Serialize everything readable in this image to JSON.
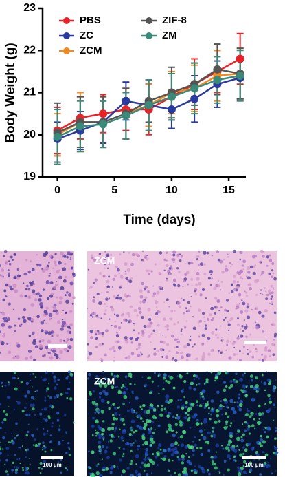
{
  "chart_data": {
    "type": "line",
    "x_label": "Time (days)",
    "y_label": "Body Weight (g)",
    "x": [
      0,
      2,
      4,
      6,
      8,
      10,
      12,
      14,
      16
    ],
    "xlim": [
      -1.3,
      16.5
    ],
    "xticks": [
      0,
      5,
      10,
      15
    ],
    "ylim": [
      19,
      23
    ],
    "yticks": [
      19,
      20,
      21,
      22,
      23
    ],
    "series": [
      {
        "name": "PBS",
        "color": "#e8232a",
        "values": [
          20.1,
          20.4,
          20.5,
          20.6,
          20.6,
          20.9,
          21.2,
          21.5,
          21.8
        ],
        "errors": [
          0.55,
          0.5,
          0.45,
          0.5,
          0.6,
          0.55,
          0.6,
          0.5,
          0.6
        ]
      },
      {
        "name": "ZC",
        "color": "#2b3a9e",
        "values": [
          19.9,
          20.1,
          20.3,
          20.8,
          20.7,
          20.6,
          20.85,
          21.2,
          21.35
        ],
        "errors": [
          0.4,
          0.45,
          0.5,
          0.45,
          0.5,
          0.45,
          0.55,
          0.55,
          0.5
        ]
      },
      {
        "name": "ZCM",
        "color": "#f08a24",
        "values": [
          20.0,
          20.3,
          20.3,
          20.5,
          20.7,
          21.0,
          21.1,
          21.4,
          21.45
        ],
        "errors": [
          0.5,
          0.7,
          0.6,
          0.6,
          0.5,
          0.5,
          0.55,
          0.6,
          0.6
        ]
      },
      {
        "name": "ZIF-8",
        "color": "#555555",
        "values": [
          20.05,
          20.3,
          20.3,
          20.5,
          20.8,
          21.0,
          21.2,
          21.55,
          21.45
        ],
        "errors": [
          0.7,
          0.6,
          0.6,
          0.6,
          0.5,
          0.6,
          0.5,
          0.6,
          0.6
        ]
      },
      {
        "name": "ZM",
        "color": "#3a8a7a",
        "values": [
          19.95,
          20.2,
          20.25,
          20.45,
          20.7,
          20.9,
          21.1,
          21.3,
          21.4
        ],
        "errors": [
          0.65,
          0.6,
          0.55,
          0.55,
          0.6,
          0.55,
          0.6,
          0.55,
          0.6
        ]
      }
    ]
  },
  "panels": {
    "top_right": {
      "label": "ZCM"
    },
    "bottom_left": {
      "scale_bar": "100 μm"
    },
    "bottom_right": {
      "label": "ZCM",
      "scale_bar": "100 μm"
    }
  }
}
